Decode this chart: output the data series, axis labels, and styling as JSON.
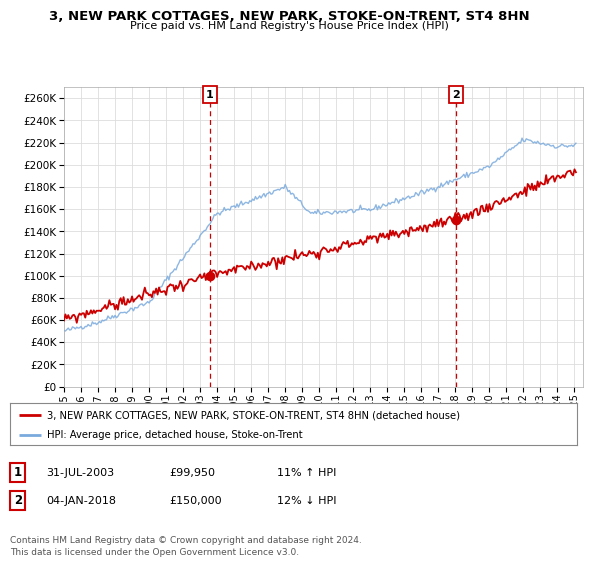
{
  "title": "3, NEW PARK COTTAGES, NEW PARK, STOKE-ON-TRENT, ST4 8HN",
  "subtitle": "Price paid vs. HM Land Registry's House Price Index (HPI)",
  "legend_line1": "3, NEW PARK COTTAGES, NEW PARK, STOKE-ON-TRENT, ST4 8HN (detached house)",
  "legend_line2": "HPI: Average price, detached house, Stoke-on-Trent",
  "annotation1_label": "1",
  "annotation1_date": "31-JUL-2003",
  "annotation1_price": "£99,950",
  "annotation1_hpi": "11% ↑ HPI",
  "annotation2_label": "2",
  "annotation2_date": "04-JAN-2018",
  "annotation2_price": "£150,000",
  "annotation2_hpi": "12% ↓ HPI",
  "footer": "Contains HM Land Registry data © Crown copyright and database right 2024.\nThis data is licensed under the Open Government Licence v3.0.",
  "sale1_year": 2003.58,
  "sale1_price": 99950,
  "sale2_year": 2018.01,
  "sale2_price": 150000,
  "property_color": "#cc0000",
  "hpi_color": "#7aaadd",
  "background_color": "#ffffff",
  "grid_color": "#dddddd",
  "ylim_min": 0,
  "ylim_max": 270000,
  "xlim_min": 1995,
  "xlim_max": 2025.5
}
